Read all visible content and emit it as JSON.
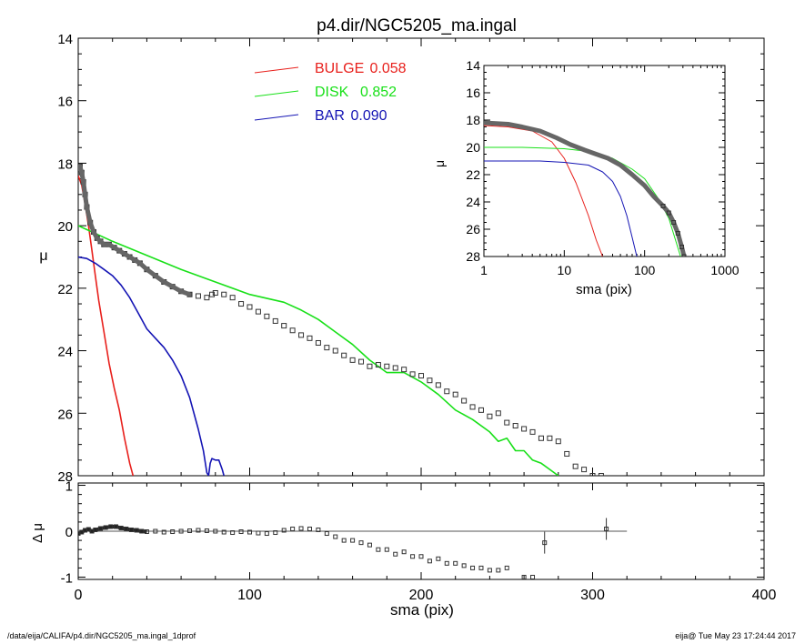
{
  "footer": {
    "left": "/data/eija/CALIFA/p4.dir/NGC5205_ma.ingal_1dprof",
    "right": "eija@  Tue May 23 17:24:44 2017"
  },
  "colors": {
    "bulge": "#e8201c",
    "disk": "#18e018",
    "bar": "#1414b4",
    "data": "#444444",
    "axis": "#000000"
  },
  "chart_data": [
    {
      "type": "line",
      "title": "p4.dir/NGC5205_ma.ingal",
      "xlabel": "",
      "ylabel": "μ",
      "xlim": [
        0,
        400
      ],
      "ylim": [
        28,
        14
      ],
      "ytick_labels": [
        "14",
        "16",
        "18",
        "20",
        "22",
        "24",
        "26",
        "28"
      ],
      "legend": [
        {
          "name": "BULGE",
          "value": "0.058",
          "color": "#e8201c"
        },
        {
          "name": "DISK",
          "value": "0.852",
          "color": "#18e018"
        },
        {
          "name": "BAR",
          "value": "0.090",
          "color": "#1414b4"
        }
      ],
      "series": [
        {
          "name": "BULGE",
          "x": [
            0,
            2,
            4,
            6,
            8,
            10,
            12,
            15,
            18,
            21,
            24,
            27,
            30,
            32
          ],
          "y": [
            18.4,
            18.7,
            19.3,
            20.0,
            20.8,
            21.6,
            22.4,
            23.4,
            24.4,
            25.2,
            25.9,
            26.8,
            27.6,
            28.0
          ]
        },
        {
          "name": "DISK",
          "x": [
            0,
            20,
            40,
            60,
            80,
            100,
            120,
            130,
            140,
            150,
            160,
            170,
            180,
            190,
            200,
            210,
            220,
            230,
            240,
            245,
            250,
            255,
            260,
            265,
            270,
            275,
            280
          ],
          "y": [
            20.0,
            20.5,
            20.95,
            21.4,
            21.8,
            22.2,
            22.45,
            22.7,
            23.0,
            23.4,
            23.8,
            24.3,
            24.7,
            24.7,
            25.0,
            25.4,
            25.9,
            26.2,
            26.6,
            26.9,
            26.8,
            27.2,
            27.2,
            27.5,
            27.6,
            27.8,
            28.0
          ]
        },
        {
          "name": "BAR",
          "x": [
            0,
            5,
            10,
            15,
            20,
            25,
            30,
            35,
            40,
            45,
            50,
            55,
            60,
            65,
            70,
            73,
            75,
            76,
            77,
            78,
            80,
            82,
            84,
            85
          ],
          "y": [
            21.0,
            21.05,
            21.2,
            21.4,
            21.6,
            21.9,
            22.3,
            22.8,
            23.3,
            23.6,
            23.9,
            24.3,
            24.8,
            25.5,
            26.5,
            27.2,
            27.9,
            28.0,
            27.6,
            27.45,
            27.5,
            27.5,
            27.8,
            28.0
          ]
        },
        {
          "name": "data",
          "x": [
            0,
            1,
            2,
            3,
            4,
            5,
            7,
            9,
            11,
            13,
            15,
            18,
            21,
            24,
            27,
            30,
            33,
            36,
            40,
            45,
            50,
            55,
            60,
            65,
            70,
            75,
            78,
            80,
            85,
            90,
            95,
            100,
            105,
            110,
            115,
            120,
            125,
            130,
            135,
            140,
            145,
            150,
            155,
            160,
            165,
            170,
            175,
            180,
            185,
            190,
            195,
            200,
            205,
            210,
            215,
            220,
            225,
            230,
            235,
            240,
            245,
            250,
            255,
            260,
            265,
            270,
            275,
            280,
            285,
            290,
            295,
            300,
            305
          ],
          "y": [
            18.2,
            18.1,
            18.3,
            18.6,
            19.0,
            19.4,
            19.9,
            20.2,
            20.4,
            20.5,
            20.6,
            20.6,
            20.7,
            20.8,
            20.9,
            21.0,
            21.1,
            21.2,
            21.4,
            21.6,
            21.8,
            21.95,
            22.1,
            22.2,
            22.25,
            22.3,
            22.2,
            22.15,
            22.2,
            22.3,
            22.5,
            22.6,
            22.75,
            22.9,
            23.05,
            23.2,
            23.35,
            23.5,
            23.6,
            23.75,
            23.9,
            24.0,
            24.15,
            24.3,
            24.35,
            24.5,
            24.45,
            24.5,
            24.55,
            24.6,
            24.75,
            24.8,
            24.95,
            25.1,
            25.3,
            25.4,
            25.6,
            25.8,
            25.9,
            26.1,
            26.0,
            26.3,
            26.4,
            26.5,
            26.6,
            26.8,
            26.8,
            26.9,
            27.3,
            27.7,
            27.8,
            28.0,
            28.0
          ]
        }
      ]
    },
    {
      "type": "line",
      "xlabel": "sma (pix)",
      "ylabel": "μ",
      "xscale": "log",
      "xlim": [
        1,
        1000
      ],
      "ylim": [
        28,
        14
      ],
      "xtick_labels": [
        "1",
        "10",
        "100",
        "1000"
      ],
      "ytick_labels": [
        "14",
        "16",
        "18",
        "20",
        "22",
        "24",
        "26",
        "28"
      ],
      "series": [
        {
          "name": "BULGE",
          "x": [
            1,
            2,
            4,
            7,
            10,
            14,
            20,
            25,
            30
          ],
          "y": [
            18.4,
            18.5,
            18.8,
            19.6,
            20.8,
            22.6,
            25.0,
            26.8,
            28.0
          ]
        },
        {
          "name": "DISK",
          "x": [
            1,
            3,
            10,
            20,
            40,
            70,
            100,
            150,
            200,
            280
          ],
          "y": [
            20.0,
            20.0,
            20.1,
            20.3,
            20.8,
            21.6,
            22.3,
            23.8,
            25.2,
            28.0
          ]
        },
        {
          "name": "BAR",
          "x": [
            1,
            5,
            10,
            20,
            30,
            40,
            50,
            60,
            70,
            80
          ],
          "y": [
            21.0,
            21.0,
            21.1,
            21.3,
            21.8,
            22.5,
            23.6,
            25.0,
            26.6,
            28.0
          ]
        },
        {
          "name": "data",
          "x": [
            1,
            2,
            3,
            5,
            8,
            12,
            18,
            25,
            35,
            50,
            70,
            100,
            130,
            170,
            200,
            230,
            260,
            290,
            310
          ],
          "y": [
            18.2,
            18.3,
            18.5,
            18.8,
            19.3,
            19.8,
            20.2,
            20.5,
            20.8,
            21.3,
            22.0,
            22.8,
            23.6,
            24.3,
            24.8,
            25.5,
            26.3,
            27.3,
            28.0
          ]
        }
      ]
    },
    {
      "type": "scatter",
      "xlabel": "sma (pix)",
      "ylabel": "Δ μ",
      "xlim": [
        0,
        400
      ],
      "ylim": [
        -1.05,
        1.05
      ],
      "xtick_labels": [
        "0",
        "100",
        "200",
        "300",
        "400"
      ],
      "ytick_labels": [
        "1",
        "0",
        "-1"
      ],
      "reference_line": {
        "y": 0,
        "x": [
          0,
          320
        ]
      },
      "series": [
        {
          "name": "residual",
          "x": [
            0,
            2,
            4,
            6,
            8,
            10,
            13,
            16,
            19,
            22,
            25,
            28,
            31,
            34,
            37,
            40,
            45,
            50,
            55,
            60,
            65,
            70,
            75,
            80,
            85,
            90,
            95,
            100,
            105,
            110,
            115,
            120,
            125,
            130,
            135,
            140,
            145,
            150,
            155,
            160,
            165,
            170,
            175,
            180,
            185,
            190,
            195,
            200,
            205,
            210,
            215,
            220,
            225,
            230,
            235,
            240,
            245,
            250,
            260,
            265,
            272,
            308
          ],
          "y": [
            -0.05,
            -0.02,
            0.02,
            0.04,
            0.0,
            0.03,
            0.06,
            0.08,
            0.1,
            0.1,
            0.07,
            0.05,
            0.03,
            0.02,
            0.0,
            -0.01,
            0.0,
            -0.02,
            -0.01,
            0.0,
            0.01,
            0.02,
            0.01,
            0.0,
            -0.02,
            -0.03,
            -0.01,
            -0.02,
            -0.04,
            -0.05,
            -0.03,
            0.02,
            0.05,
            0.06,
            0.05,
            0.03,
            -0.05,
            -0.12,
            -0.2,
            -0.2,
            -0.25,
            -0.3,
            -0.4,
            -0.4,
            -0.5,
            -0.45,
            -0.55,
            -0.55,
            -0.65,
            -0.6,
            -0.7,
            -0.7,
            -0.75,
            -0.8,
            -0.8,
            -0.85,
            -0.85,
            -0.8,
            -1.0,
            -1.0,
            -0.25,
            0.05
          ]
        }
      ]
    }
  ]
}
